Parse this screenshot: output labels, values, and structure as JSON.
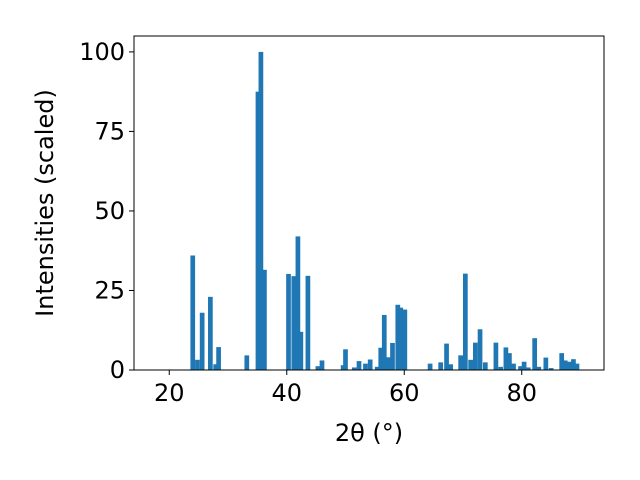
{
  "chart_data": {
    "type": "bar",
    "title": "",
    "xlabel": "2θ (°)",
    "ylabel": "Intensities (scaled)",
    "xlim": [
      14,
      94
    ],
    "ylim": [
      0,
      105
    ],
    "xticks": [
      20,
      40,
      60,
      80
    ],
    "yticks": [
      0,
      25,
      50,
      75,
      100
    ],
    "bar_width_deg": 0.8,
    "grid": false,
    "legend": "none",
    "colors": {
      "bar": "#1f77b4",
      "axis": "#000000",
      "background": "#ffffff"
    },
    "series": [
      {
        "x": [
          24.0,
          24.8,
          25.6,
          27.0,
          27.9,
          28.4,
          33.2,
          35.1,
          35.6,
          36.2,
          40.3,
          41.2,
          41.9,
          42.4,
          43.6,
          45.3,
          46.0,
          49.6,
          50.0,
          51.5,
          52.3,
          53.4,
          54.2,
          55.4,
          56.0,
          56.6,
          57.3,
          58.0,
          58.9,
          59.4,
          60.1,
          64.4,
          66.2,
          67.2,
          67.9,
          69.6,
          70.4,
          71.3,
          72.1,
          72.9,
          73.8,
          75.6,
          76.4,
          77.3,
          77.9,
          78.6,
          79.8,
          80.4,
          81.1,
          82.2,
          82.9,
          84.1,
          85.0,
          86.8,
          87.4,
          88.1,
          88.8,
          89.4
        ],
        "y": [
          36.0,
          3.2,
          18.0,
          23.0,
          1.8,
          7.2,
          4.6,
          87.5,
          100.0,
          31.5,
          30.2,
          29.5,
          42.0,
          12.0,
          29.6,
          1.2,
          3.0,
          1.5,
          6.5,
          0.8,
          2.8,
          2.0,
          3.3,
          1.0,
          7.0,
          17.3,
          4.0,
          8.5,
          20.5,
          19.6,
          19.0,
          2.0,
          2.4,
          8.3,
          1.8,
          4.6,
          30.3,
          3.2,
          8.6,
          12.8,
          2.4,
          8.6,
          1.0,
          7.1,
          5.3,
          2.0,
          1.2,
          2.6,
          0.8,
          10.0,
          1.0,
          3.9,
          0.6,
          5.3,
          3.0,
          2.6,
          3.4,
          2.0
        ]
      }
    ]
  }
}
